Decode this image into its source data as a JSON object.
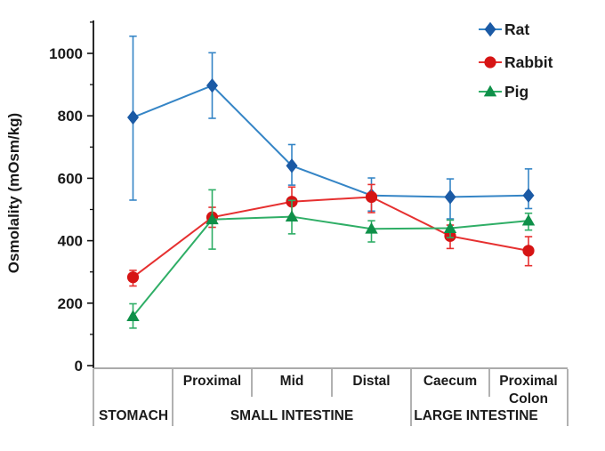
{
  "chart_data": {
    "type": "line",
    "title": "",
    "ylabel": "Osmolality  (mOsm/kg)",
    "ylim": [
      0,
      1100
    ],
    "yticks": [
      0,
      200,
      400,
      600,
      800,
      1000
    ],
    "minor_tick_step": 100,
    "grid": false,
    "legend_position": "top-right",
    "categories": [
      "Stomach",
      "Proximal",
      "Mid",
      "Distal",
      "Caecum",
      "Proximal Colon"
    ],
    "x_axis": {
      "sub_labels": [
        [],
        [
          "Proximal"
        ],
        [
          "Mid"
        ],
        [
          "Distal"
        ],
        [
          "Caecum"
        ],
        [
          "Proximal",
          "Colon"
        ]
      ],
      "groups": [
        {
          "label": "STOMACH",
          "from": 0,
          "to": 0
        },
        {
          "label": "SMALL INTESTINE",
          "from": 1,
          "to": 3
        },
        {
          "label": "LARGE INTESTINE",
          "from": 4,
          "to": 5
        }
      ]
    },
    "series": [
      {
        "name": "Rat",
        "marker": "diamond",
        "line_color": "#3585c6",
        "marker_color": "#1b5aa5",
        "values": [
          795,
          897,
          640,
          545,
          540,
          545
        ],
        "err_up": [
          260,
          105,
          68,
          56,
          58,
          85
        ],
        "err_down": [
          265,
          105,
          62,
          50,
          70,
          42
        ]
      },
      {
        "name": "Rabbit",
        "marker": "circle",
        "line_color": "#e63030",
        "marker_color": "#d61414",
        "values": [
          283,
          475,
          525,
          540,
          415,
          368
        ],
        "err_up": [
          22,
          32,
          47,
          40,
          35,
          45
        ],
        "err_down": [
          28,
          32,
          47,
          50,
          40,
          48
        ]
      },
      {
        "name": "Pig",
        "marker": "triangle",
        "line_color": "#2fae66",
        "marker_color": "#0f9049",
        "values": [
          158,
          468,
          477,
          438,
          440,
          464
        ],
        "err_up": [
          40,
          95,
          52,
          26,
          26,
          24
        ],
        "err_down": [
          38,
          95,
          55,
          42,
          30,
          30
        ]
      }
    ]
  }
}
